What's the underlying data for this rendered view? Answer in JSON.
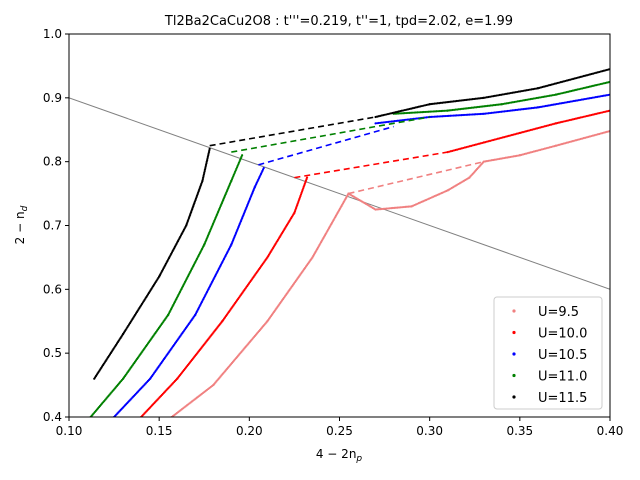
{
  "chart_data": {
    "type": "scatter",
    "title": "Tl2Ba2CaCu2O8 : t'''=0.219, t''=1, tpd=2.02, e=1.99",
    "xlabel": "4 − 2n",
    "xlabel_sub": "p",
    "ylabel": "2 − n",
    "ylabel_sub": "d",
    "xlim": [
      0.1,
      0.4
    ],
    "ylim": [
      0.4,
      1.0
    ],
    "xticks": [
      "0.10",
      "0.15",
      "0.20",
      "0.25",
      "0.30",
      "0.35",
      "0.40"
    ],
    "yticks": [
      "0.4",
      "0.5",
      "0.6",
      "0.7",
      "0.8",
      "0.9",
      "1.0"
    ],
    "legend_position": "bottom-right",
    "reference_line": {
      "color": "#808080",
      "points": [
        [
          0.1,
          0.9
        ],
        [
          0.4,
          0.6
        ]
      ]
    },
    "series": [
      {
        "name": "U=9.5",
        "color": "#f08080",
        "lower": [
          [
            0.157,
            0.4
          ],
          [
            0.18,
            0.45
          ],
          [
            0.21,
            0.55
          ],
          [
            0.235,
            0.65
          ],
          [
            0.255,
            0.75
          ]
        ],
        "upper": [
          [
            0.255,
            0.75
          ],
          [
            0.27,
            0.725
          ],
          [
            0.29,
            0.73
          ],
          [
            0.31,
            0.755
          ],
          [
            0.322,
            0.775
          ],
          [
            0.33,
            0.8
          ],
          [
            0.35,
            0.81
          ],
          [
            0.37,
            0.825
          ],
          [
            0.4,
            0.848
          ]
        ],
        "dashed": [
          [
            0.255,
            0.75
          ],
          [
            0.33,
            0.8
          ]
        ]
      },
      {
        "name": "U=10.0",
        "color": "#ff0000",
        "lower": [
          [
            0.14,
            0.4
          ],
          [
            0.16,
            0.46
          ],
          [
            0.185,
            0.55
          ],
          [
            0.21,
            0.65
          ],
          [
            0.225,
            0.72
          ],
          [
            0.232,
            0.775
          ]
        ],
        "upper": [
          [
            0.31,
            0.815
          ],
          [
            0.33,
            0.83
          ],
          [
            0.35,
            0.845
          ],
          [
            0.37,
            0.86
          ],
          [
            0.4,
            0.88
          ]
        ],
        "dashed": [
          [
            0.225,
            0.775
          ],
          [
            0.31,
            0.815
          ]
        ]
      },
      {
        "name": "U=10.5",
        "color": "#0000ff",
        "lower": [
          [
            0.125,
            0.4
          ],
          [
            0.145,
            0.46
          ],
          [
            0.17,
            0.56
          ],
          [
            0.19,
            0.67
          ],
          [
            0.203,
            0.76
          ],
          [
            0.208,
            0.79
          ]
        ],
        "upper": [
          [
            0.27,
            0.86
          ],
          [
            0.3,
            0.87
          ],
          [
            0.33,
            0.875
          ],
          [
            0.36,
            0.885
          ],
          [
            0.4,
            0.905
          ]
        ],
        "dashed": [
          [
            0.205,
            0.795
          ],
          [
            0.28,
            0.855
          ]
        ]
      },
      {
        "name": "U=11.0",
        "color": "#008000",
        "lower": [
          [
            0.112,
            0.4
          ],
          [
            0.13,
            0.46
          ],
          [
            0.155,
            0.56
          ],
          [
            0.175,
            0.67
          ],
          [
            0.19,
            0.77
          ],
          [
            0.196,
            0.81
          ]
        ],
        "upper": [
          [
            0.28,
            0.875
          ],
          [
            0.31,
            0.88
          ],
          [
            0.34,
            0.89
          ],
          [
            0.37,
            0.905
          ],
          [
            0.4,
            0.925
          ]
        ],
        "dashed": [
          [
            0.19,
            0.815
          ],
          [
            0.3,
            0.87
          ]
        ]
      },
      {
        "name": "U=11.5",
        "color": "#000000",
        "lower": [
          [
            0.114,
            0.46
          ],
          [
            0.13,
            0.53
          ],
          [
            0.15,
            0.62
          ],
          [
            0.165,
            0.7
          ],
          [
            0.174,
            0.77
          ],
          [
            0.178,
            0.82
          ]
        ],
        "upper": [
          [
            0.27,
            0.87
          ],
          [
            0.3,
            0.89
          ],
          [
            0.33,
            0.9
          ],
          [
            0.36,
            0.915
          ],
          [
            0.4,
            0.945
          ]
        ],
        "dashed": [
          [
            0.178,
            0.825
          ],
          [
            0.27,
            0.87
          ]
        ]
      }
    ]
  }
}
